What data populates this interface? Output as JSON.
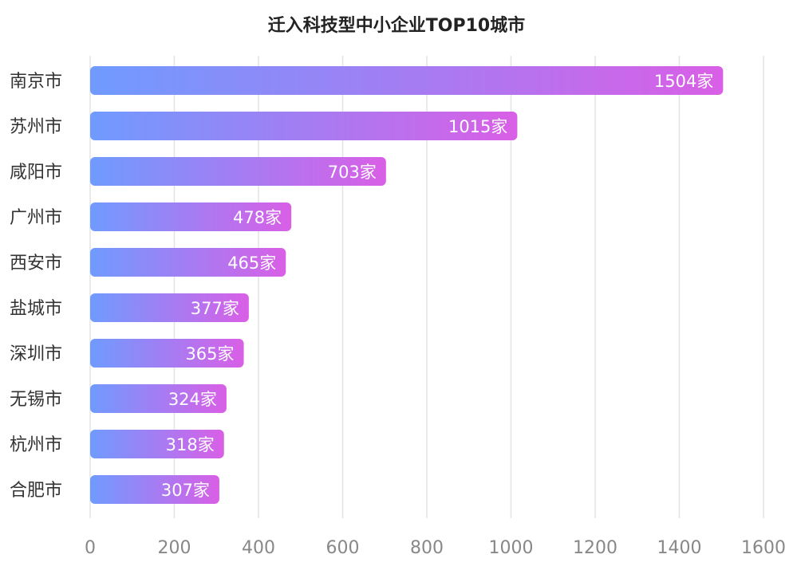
{
  "chart_data": {
    "type": "bar",
    "orientation": "horizontal",
    "title": "迁入科技型中小企业TOP10城市",
    "categories": [
      "南京市",
      "苏州市",
      "咸阳市",
      "广州市",
      "西安市",
      "盐城市",
      "深圳市",
      "无锡市",
      "杭州市",
      "合肥市"
    ],
    "values": [
      1504,
      1015,
      703,
      478,
      465,
      377,
      365,
      324,
      318,
      307
    ],
    "value_labels": [
      "1504家",
      "1015家",
      "703家",
      "478家",
      "465家",
      "377家",
      "365家",
      "324家",
      "318家",
      "307家"
    ],
    "x_ticks": [
      "0",
      "200",
      "400",
      "600",
      "800",
      "1000",
      "1200",
      "1400",
      "1600"
    ],
    "xlim": [
      0,
      1600
    ],
    "grid": "vertical",
    "colors": {
      "gradient_start": "#6f9bff",
      "gradient_end": "#d95fe6",
      "grid": "#e3e3e3"
    }
  }
}
